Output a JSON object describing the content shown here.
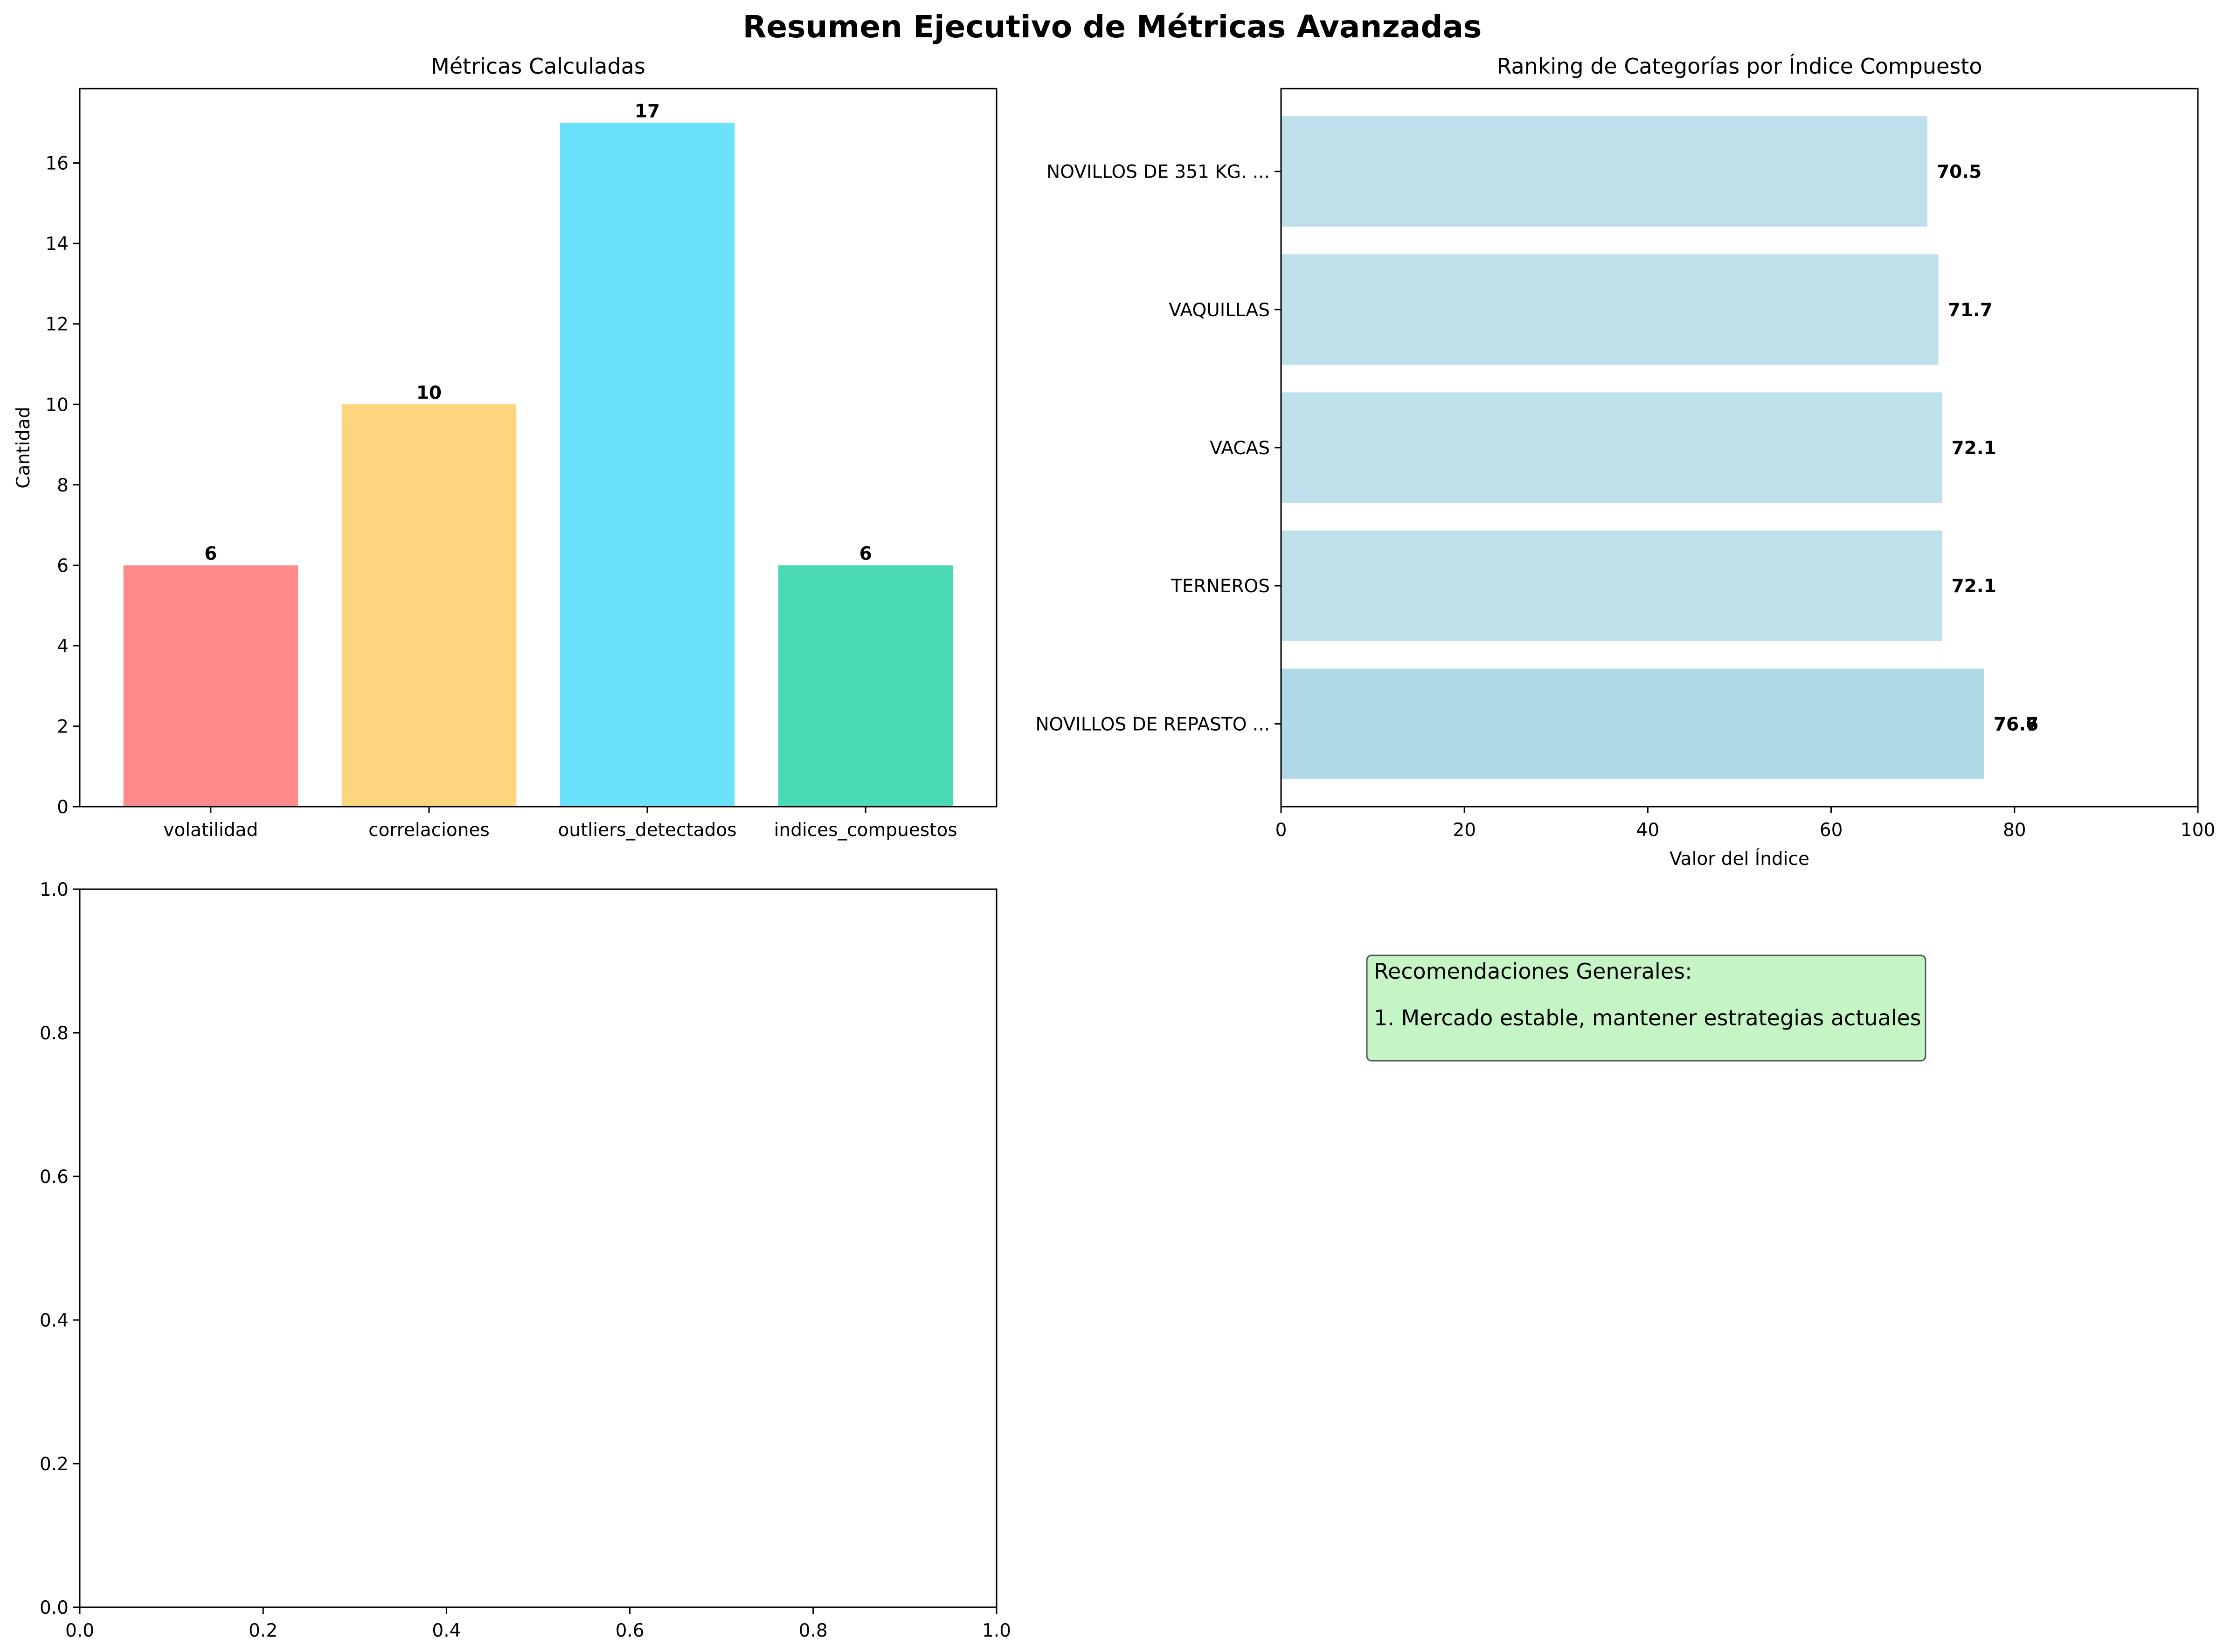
{
  "figure": {
    "title": "Resumen Ejecutivo de Métricas Avanzadas"
  },
  "chart_data": [
    {
      "type": "bar",
      "title": "Métricas Calculadas",
      "xlabel": "",
      "ylabel": "Cantidad",
      "categories": [
        "volatilidad",
        "correlaciones",
        "outliers_detectados",
        "indices_compuestos"
      ],
      "values": [
        6,
        10,
        17,
        6
      ],
      "data_labels": [
        "6",
        "10",
        "17",
        "6"
      ],
      "colors": [
        "#ff8a8a",
        "#fdd57e",
        "#6ae2fb",
        "#4adbb4"
      ],
      "ylim": [
        0,
        17.85
      ],
      "yticks": [
        0,
        2,
        4,
        6,
        8,
        10,
        12,
        14,
        16
      ],
      "ytick_labels": [
        "0",
        "2",
        "4",
        "6",
        "8",
        "10",
        "12",
        "14",
        "16"
      ],
      "grid": false
    },
    {
      "type": "barh",
      "title": "Ranking de Categorías por Índice Compuesto",
      "xlabel": "Valor del Índice",
      "ylabel": "",
      "categories": [
        "NOVILLOS DE REPASTO ...",
        "TERNEROS",
        "VACAS",
        "VAQUILLAS",
        "NOVILLOS DE 351 KG. ..."
      ],
      "values": [
        76.7,
        72.1,
        72.1,
        71.7,
        70.5
      ],
      "data_labels": [
        "76.7",
        "72.1",
        "72.1",
        "71.7",
        "70.5"
      ],
      "overlapping_label": "76.6",
      "color": "#add8e6",
      "xlim": [
        0,
        100
      ],
      "xticks": [
        0,
        20,
        40,
        60,
        80,
        100
      ],
      "xtick_labels": [
        "0",
        "20",
        "40",
        "60",
        "80",
        "100"
      ],
      "grid": false
    },
    {
      "type": "empty",
      "title": "",
      "xlim": [
        0,
        1
      ],
      "ylim": [
        0,
        1
      ],
      "xticks": [
        0,
        0.2,
        0.4,
        0.6,
        0.8,
        1.0
      ],
      "xtick_labels": [
        "0.0",
        "0.2",
        "0.4",
        "0.6",
        "0.8",
        "1.0"
      ],
      "yticks": [
        0,
        0.2,
        0.4,
        0.6,
        0.8,
        1.0
      ],
      "ytick_labels": [
        "0.0",
        "0.2",
        "0.4",
        "0.6",
        "0.8",
        "1.0"
      ]
    }
  ],
  "recommendations": {
    "heading": "Recomendaciones Generales:",
    "items": [
      "1. Mercado estable, mantener estrategias actuales"
    ],
    "background": "#c5f5c5",
    "border": "#555555"
  }
}
